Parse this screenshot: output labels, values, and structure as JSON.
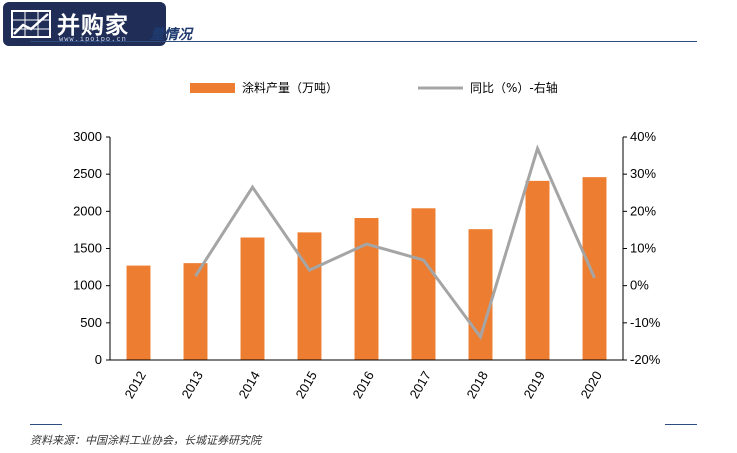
{
  "header": {
    "logo_title": "并购家",
    "logo_url": "www.ipoipo.cn",
    "title": "量情况"
  },
  "chart_data": {
    "type": "bar",
    "categories": [
      "2012",
      "2013",
      "2014",
      "2015",
      "2016",
      "2017",
      "2018",
      "2019",
      "2020"
    ],
    "series": [
      {
        "name": "涂料产量（万吨）",
        "type": "bar",
        "axis": "left",
        "color": "#ed7d31",
        "values": [
          1270,
          1303,
          1648,
          1717,
          1910,
          2041,
          1760,
          2410,
          2460
        ]
      },
      {
        "name": "同比（%）-右轴",
        "type": "line",
        "axis": "right",
        "color": "#a5a5a5",
        "values": [
          null,
          2.6,
          26.5,
          4.2,
          11.2,
          6.9,
          -13.8,
          36.9,
          2.1
        ]
      }
    ],
    "left_axis": {
      "min": 0,
      "max": 3000,
      "step": 500,
      "ticks": [
        "0",
        "500",
        "1000",
        "1500",
        "2000",
        "2500",
        "3000"
      ]
    },
    "right_axis": {
      "min": -20,
      "max": 40,
      "step": 10,
      "ticks": [
        "-20%",
        "-10%",
        "0%",
        "10%",
        "20%",
        "30%",
        "40%"
      ]
    },
    "legend_position": "top",
    "grid": false
  },
  "footer": {
    "source": "资料来源：中国涂料工业协会，长城证券研究院"
  }
}
